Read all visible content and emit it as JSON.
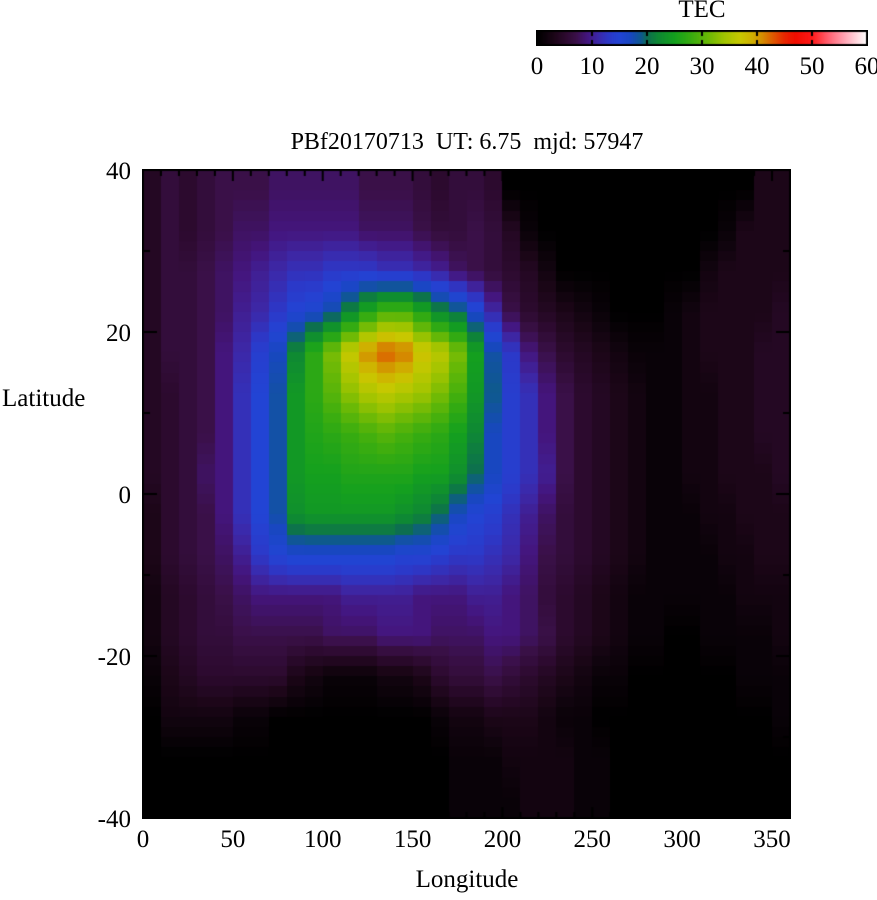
{
  "page": {
    "background": "#ffffff",
    "foreground": "#000000"
  },
  "title": "PBf20170713  UT: 6.75  mjd: 57947",
  "colorbar": {
    "title": "TEC",
    "min": 0,
    "max": 60,
    "tick_values": [
      0,
      10,
      20,
      30,
      40,
      50,
      60
    ],
    "tick_labels": [
      "0",
      "10",
      "20",
      "30",
      "40",
      "50",
      "60"
    ]
  },
  "axes": {
    "x": {
      "label": "Longitude",
      "range": [
        0,
        360
      ],
      "major_tick_values": [
        0,
        50,
        100,
        150,
        200,
        250,
        300,
        350
      ],
      "tick_labels": [
        "0",
        "50",
        "100",
        "150",
        "200",
        "250",
        "300",
        "350"
      ],
      "minor_step": 10
    },
    "y": {
      "label": "Latitude",
      "range": [
        -40,
        40
      ],
      "major_tick_values": [
        40,
        20,
        0,
        -20,
        -40
      ],
      "tick_labels": [
        "40",
        "20",
        "0",
        "-20",
        "-40"
      ],
      "minor_step": 10
    }
  },
  "chart_data": {
    "type": "heatmap",
    "title": "PBf20170713  UT: 6.75  mjd: 57947",
    "value_name": "TEC",
    "xlabel": "Longitude",
    "ylabel": "Latitude",
    "xlim": [
      0,
      360
    ],
    "ylim": [
      -40,
      40
    ],
    "value_range": [
      0,
      60
    ],
    "lon_bin_centers": [
      5,
      15,
      25,
      35,
      45,
      55,
      65,
      75,
      85,
      95,
      105,
      115,
      125,
      135,
      145,
      155,
      165,
      175,
      185,
      195,
      205,
      215,
      225,
      235,
      245,
      255,
      265,
      275,
      285,
      295,
      305,
      315,
      325,
      335,
      345,
      355
    ],
    "lat_bin_centers": [
      37.5,
      32.5,
      27.5,
      22.5,
      17.5,
      12.5,
      7.5,
      2.5,
      -2.5,
      -7.5,
      -12.5,
      -17.5,
      -22.5,
      -27.5,
      -32.5,
      -37.5
    ],
    "grid": [
      [
        4,
        6,
        5,
        6,
        7,
        7,
        7,
        8,
        8,
        8,
        8,
        8,
        7,
        7,
        7,
        6,
        5,
        6,
        6,
        5,
        0,
        0,
        0,
        0,
        0,
        0,
        0,
        0,
        0,
        0,
        0,
        0,
        0,
        0,
        3,
        3
      ],
      [
        4,
        6,
        5,
        6,
        7,
        8,
        8,
        9,
        9,
        9,
        9,
        9,
        8,
        8,
        8,
        7,
        6,
        6,
        7,
        6,
        4,
        1,
        0,
        0,
        0,
        0,
        0,
        0,
        0,
        0,
        0,
        0,
        1,
        3,
        3,
        3
      ],
      [
        4,
        6,
        6,
        7,
        8,
        9,
        10,
        11,
        12,
        12,
        13,
        13,
        13,
        12,
        12,
        11,
        10,
        8,
        7,
        6,
        5,
        4,
        2,
        0,
        0,
        0,
        0,
        0,
        0,
        0,
        0,
        2,
        3,
        3,
        3,
        3
      ],
      [
        4,
        6,
        6,
        7,
        8,
        10,
        11,
        13,
        15,
        16,
        18,
        22,
        26,
        29,
        29,
        26,
        22,
        20,
        16,
        11,
        7,
        5,
        4,
        3,
        2,
        1,
        0,
        0,
        0,
        1,
        2,
        3,
        3,
        3,
        3,
        4
      ],
      [
        4,
        6,
        6,
        7,
        9,
        11,
        14,
        17,
        22,
        27,
        32,
        37,
        41,
        43,
        42,
        38,
        36,
        32,
        25,
        18,
        13,
        9,
        7,
        5,
        4,
        3,
        2,
        1,
        1,
        1,
        2,
        3,
        3,
        3,
        4,
        4
      ],
      [
        4,
        5,
        6,
        7,
        9,
        12,
        15,
        18,
        24,
        27,
        30,
        33,
        35,
        36,
        35,
        34,
        32,
        29,
        24,
        19,
        14,
        12,
        9,
        7,
        5,
        4,
        3,
        2,
        1,
        1,
        2,
        2,
        3,
        3,
        4,
        4
      ],
      [
        4,
        5,
        6,
        7,
        9,
        12,
        15,
        18,
        24,
        26,
        27,
        28,
        29,
        30,
        29,
        28,
        27,
        25,
        22,
        17,
        14,
        12,
        9,
        7,
        5,
        4,
        3,
        2,
        1,
        1,
        2,
        2,
        3,
        3,
        4,
        4
      ],
      [
        4,
        5,
        6,
        8,
        9,
        12,
        15,
        18,
        24,
        25,
        25,
        26,
        26,
        26,
        26,
        25,
        25,
        23,
        20,
        17,
        14,
        12,
        10,
        7,
        5,
        4,
        3,
        2,
        1,
        1,
        2,
        2,
        3,
        3,
        3,
        4
      ],
      [
        3,
        5,
        6,
        7,
        9,
        12,
        15,
        18,
        23,
        24,
        24,
        24,
        24,
        24,
        23,
        22,
        20,
        17,
        15,
        14,
        12,
        10,
        8,
        6,
        5,
        4,
        3,
        2,
        1,
        1,
        1,
        2,
        2,
        3,
        3,
        3
      ],
      [
        3,
        5,
        6,
        7,
        8,
        10,
        13,
        15,
        16,
        16,
        16,
        16,
        16,
        16,
        15,
        15,
        14,
        13,
        13,
        12,
        11,
        9,
        7,
        6,
        5,
        4,
        3,
        2,
        1,
        1,
        1,
        1,
        2,
        2,
        3,
        3
      ],
      [
        2,
        4,
        5,
        6,
        7,
        8,
        9,
        9,
        9,
        9,
        9,
        10,
        10,
        10,
        10,
        9,
        9,
        9,
        10,
        10,
        9,
        8,
        6,
        5,
        4,
        3,
        2,
        1,
        1,
        1,
        1,
        1,
        1,
        2,
        2,
        2
      ],
      [
        2,
        4,
        5,
        6,
        6,
        7,
        7,
        7,
        7,
        7,
        8,
        8,
        8,
        9,
        9,
        9,
        8,
        8,
        8,
        9,
        9,
        8,
        7,
        5,
        4,
        3,
        2,
        1,
        1,
        0,
        0,
        1,
        1,
        1,
        1,
        2
      ],
      [
        1,
        3,
        4,
        5,
        5,
        5,
        5,
        5,
        3,
        2,
        1,
        1,
        1,
        2,
        2,
        3,
        5,
        6,
        6,
        7,
        6,
        5,
        4,
        3,
        2,
        1,
        1,
        0,
        0,
        0,
        0,
        0,
        0,
        1,
        1,
        1
      ],
      [
        0,
        2,
        2,
        2,
        2,
        1,
        1,
        0,
        0,
        0,
        0,
        0,
        0,
        0,
        0,
        0,
        1,
        2,
        2,
        3,
        3,
        3,
        2,
        1,
        1,
        0,
        0,
        0,
        0,
        0,
        0,
        0,
        0,
        0,
        0,
        1
      ],
      [
        0,
        0,
        0,
        0,
        0,
        0,
        0,
        0,
        0,
        0,
        0,
        0,
        0,
        0,
        0,
        0,
        0,
        1,
        1,
        1,
        2,
        2,
        2,
        2,
        1,
        1,
        0,
        0,
        0,
        0,
        0,
        0,
        0,
        0,
        0,
        0
      ],
      [
        0,
        0,
        0,
        0,
        0,
        0,
        0,
        0,
        0,
        0,
        0,
        0,
        0,
        0,
        0,
        0,
        0,
        1,
        1,
        1,
        1,
        2,
        2,
        2,
        1,
        1,
        0,
        0,
        0,
        0,
        0,
        0,
        0,
        0,
        0,
        0
      ]
    ],
    "colormap_stops": [
      [
        0,
        "#000000"
      ],
      [
        3,
        "#1c0618"
      ],
      [
        5,
        "#2c0a2e"
      ],
      [
        7,
        "#3a1048"
      ],
      [
        9,
        "#44157c"
      ],
      [
        11,
        "#3c28a8"
      ],
      [
        13,
        "#2c38c8"
      ],
      [
        15,
        "#2244d4"
      ],
      [
        17,
        "#1847c0"
      ],
      [
        19,
        "#0e5a8c"
      ],
      [
        20,
        "#0d6e50"
      ],
      [
        22,
        "#0e8834"
      ],
      [
        25,
        "#14a01e"
      ],
      [
        28,
        "#38ac10"
      ],
      [
        31,
        "#68b806"
      ],
      [
        34,
        "#a0c400"
      ],
      [
        37,
        "#c8c800"
      ],
      [
        39,
        "#cfb200"
      ],
      [
        41,
        "#d48c00"
      ],
      [
        43,
        "#de5800"
      ],
      [
        45,
        "#e82800"
      ],
      [
        47,
        "#f20e00"
      ],
      [
        50,
        "#ff1818"
      ],
      [
        53,
        "#ff6070"
      ],
      [
        56,
        "#ffa4b4"
      ],
      [
        58,
        "#ffd2da"
      ],
      [
        60,
        "#ffffff"
      ]
    ],
    "legend_position": "top-right",
    "grid_lines": false
  }
}
